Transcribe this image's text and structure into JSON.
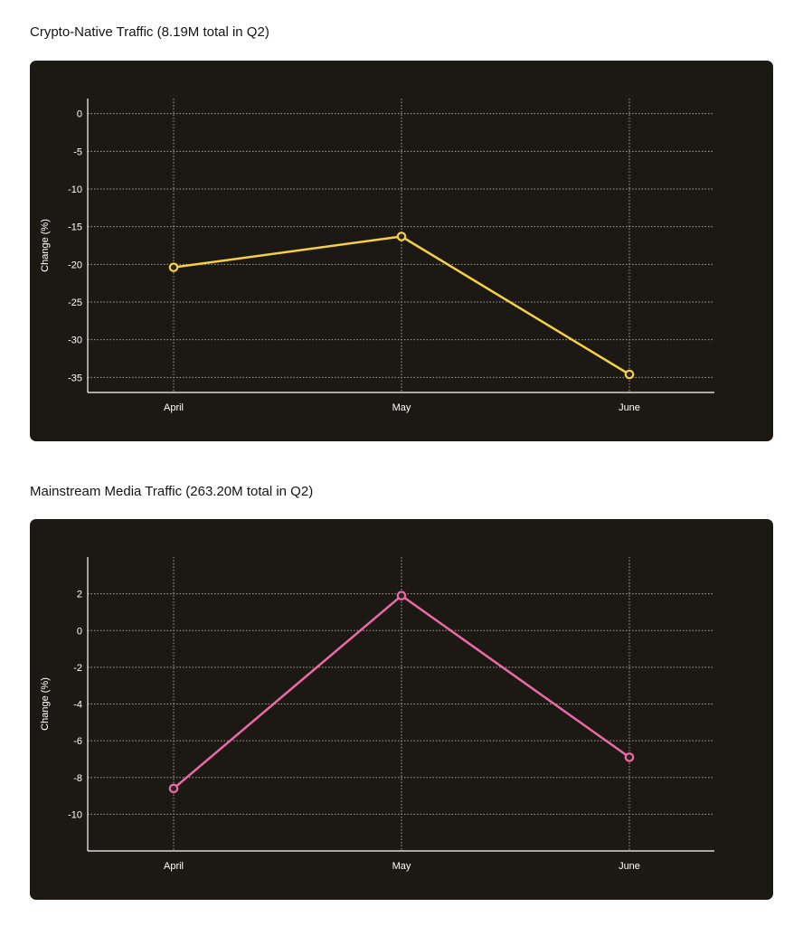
{
  "chart_data": [
    {
      "type": "line",
      "title": "Crypto-Native Traffic (8.19M total in Q2)",
      "xlabel": "",
      "ylabel": "Change (%)",
      "categories": [
        "April",
        "May",
        "June"
      ],
      "series": [
        {
          "values": [
            -20.4,
            -16.3,
            -34.6
          ],
          "color": "#f5d142"
        }
      ],
      "ylim": [
        -37,
        2
      ],
      "yticks": [
        0,
        -5,
        -10,
        -15,
        -20,
        -25,
        -30,
        -35
      ],
      "grid": true,
      "grid_style": "dotted",
      "background_color": "#1c1915"
    },
    {
      "type": "line",
      "title": "Mainstream Media Traffic (263.20M total in Q2)",
      "xlabel": "",
      "ylabel": "Change (%)",
      "categories": [
        "April",
        "May",
        "June"
      ],
      "series": [
        {
          "values": [
            -8.6,
            1.9,
            -6.9
          ],
          "color": "#ee6aa7"
        }
      ],
      "ylim": [
        -12,
        4
      ],
      "yticks": [
        2,
        0,
        -2,
        -4,
        -6,
        -8,
        -10
      ],
      "grid": true,
      "grid_style": "dotted",
      "background_color": "#1c1915"
    }
  ]
}
